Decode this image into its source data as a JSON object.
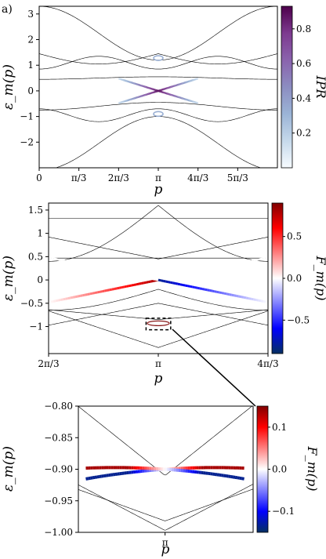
{
  "figure": {
    "panel_label": "a)"
  },
  "chart_data": [
    {
      "type": "line",
      "panel": "top",
      "xlabel": "p",
      "ylabel": "ε_m(p)",
      "xlim": [
        0,
        6.2832
      ],
      "ylim": [
        -3.0,
        3.3
      ],
      "xticks": [
        {
          "v": 0,
          "label": "0"
        },
        {
          "v": 1.0472,
          "label": "π/3"
        },
        {
          "v": 2.0944,
          "label": "2π/3"
        },
        {
          "v": 3.1416,
          "label": "π"
        },
        {
          "v": 4.1888,
          "label": "4π/3"
        },
        {
          "v": 5.236,
          "label": "5π/3"
        }
      ],
      "yticks": [
        {
          "v": -2,
          "label": "−2"
        },
        {
          "v": -1,
          "label": "−1"
        },
        {
          "v": 0,
          "label": "0"
        },
        {
          "v": 1,
          "label": "1"
        },
        {
          "v": 2,
          "label": "2"
        },
        {
          "v": 3,
          "label": "3"
        }
      ],
      "colorbar": {
        "label": "IPR",
        "range": [
          0.0,
          0.93
        ],
        "ticks": [
          {
            "v": 0.2,
            "label": "0.2"
          },
          {
            "v": 0.4,
            "label": "0.4"
          },
          {
            "v": 0.6,
            "label": "0.6"
          },
          {
            "v": 0.8,
            "label": "0.8"
          }
        ],
        "colors": [
          "#f7fbff",
          "#c6d9eb",
          "#9bb4d6",
          "#8c8dc1",
          "#8a63ad",
          "#7d3a8f",
          "#4d004b"
        ]
      }
    },
    {
      "type": "line",
      "panel": "middle",
      "xlabel": "p",
      "ylabel": "ε_m(p)",
      "xlim": [
        2.0944,
        4.1888
      ],
      "ylim": [
        -1.58,
        1.65
      ],
      "xticks": [
        {
          "v": 2.0944,
          "label": "2π/3"
        },
        {
          "v": 3.1416,
          "label": "π"
        },
        {
          "v": 4.1888,
          "label": "4π/3"
        }
      ],
      "yticks": [
        {
          "v": -1,
          "label": "−1"
        },
        {
          "v": -0.5,
          "label": "−0.5"
        },
        {
          "v": 0,
          "label": "0"
        },
        {
          "v": 0.5,
          "label": "0.5"
        },
        {
          "v": 1,
          "label": "1"
        },
        {
          "v": 1.5,
          "label": "1.5"
        }
      ],
      "colorbar": {
        "label": "F_m(p)",
        "range": [
          -0.9,
          0.9
        ],
        "ticks": [
          {
            "v": -0.5,
            "label": "−0.5"
          },
          {
            "v": 0.0,
            "label": "0.0"
          },
          {
            "v": 0.5,
            "label": "0.5"
          }
        ],
        "colors": [
          "#053061",
          "#0000ff",
          "#8080ff",
          "#ffffff",
          "#ff8080",
          "#ff0000",
          "#800000"
        ]
      },
      "inset_box": {
        "x": [
          3.025,
          3.26
        ],
        "y": [
          -1.07,
          -0.82
        ]
      }
    },
    {
      "type": "line",
      "panel": "bottom",
      "xlabel": "p",
      "ylabel": "ε_m(p)",
      "xlim": [
        3.025,
        3.26
      ],
      "ylim": [
        -1.0,
        -0.8
      ],
      "xticks": [
        {
          "v": 3.1416,
          "label": "π"
        }
      ],
      "yticks": [
        {
          "v": -1.0,
          "label": "−1.00"
        },
        {
          "v": -0.95,
          "label": "−0.95"
        },
        {
          "v": -0.9,
          "label": "−0.90"
        },
        {
          "v": -0.85,
          "label": "−0.85"
        },
        {
          "v": -0.8,
          "label": "−0.80"
        }
      ],
      "colorbar": {
        "label": "F_m(p)",
        "range": [
          -0.15,
          0.15
        ],
        "ticks": [
          {
            "v": -0.1,
            "label": "−0.1"
          },
          {
            "v": 0.0,
            "label": "0.0"
          },
          {
            "v": 0.1,
            "label": "0.1"
          }
        ],
        "colors": [
          "#053061",
          "#0000ff",
          "#8080ff",
          "#ffffff",
          "#ff8080",
          "#ff0000",
          "#800000"
        ]
      }
    }
  ]
}
